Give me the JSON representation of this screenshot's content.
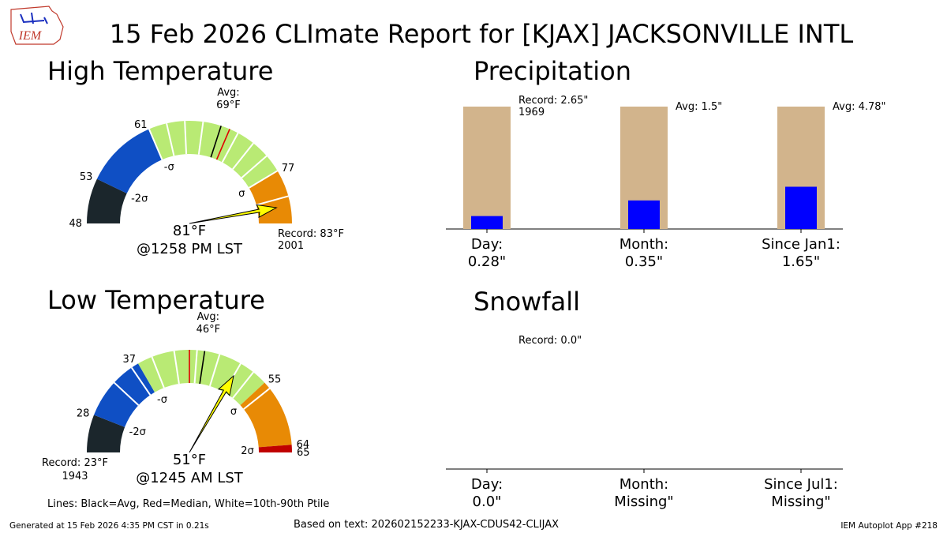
{
  "title": "15 Feb 2026 CLImate Report for [KJAX] JACKSONVILLE INTL",
  "logo_text": "IEM",
  "legend_note": "Lines: Black=Avg, Red=Median, White=10th-90th Ptile",
  "generated": "Generated at 15 Feb 2026 4:35 PM CST in 0.21s",
  "source": "Based on text: 202602152233-KJAX-CDUS42-CLIJAX",
  "app": "IEM Autoplot App #218",
  "chart_data": [
    {
      "type": "gauge",
      "title": "High Temperature",
      "range": [
        48,
        83
      ],
      "bands": [
        {
          "from": 48,
          "to": 53,
          "color": "#1b262c"
        },
        {
          "from": 53,
          "to": 61,
          "color": "#0f4fc4"
        },
        {
          "from": 61,
          "to": 77,
          "color": "#b9ea74"
        },
        {
          "from": 77,
          "to": 83,
          "color": "#e88a05"
        }
      ],
      "ticks": [
        48,
        53,
        61,
        77
      ],
      "sigma_labels": [
        {
          "value": 53,
          "label": "-2σ"
        },
        {
          "value": 61,
          "label": "-σ"
        },
        {
          "value": 77,
          "label": "σ"
        }
      ],
      "avg": 69,
      "avg_label": "Avg:",
      "avg_value_label": "69°F",
      "median": 70,
      "percentile_lines": [
        61,
        63,
        65,
        67,
        71,
        73,
        75,
        77,
        80
      ],
      "value": 81,
      "value_label": "81°F",
      "time": "@1258 PM LST",
      "record": 83,
      "record_label": "Record: 83°F",
      "record_year": "2001",
      "needle_color": "#ffff00"
    },
    {
      "type": "bar",
      "title": "Precipitation",
      "categories": [
        "Day:",
        "Month:",
        "Since Jan1:"
      ],
      "values": [
        0.28,
        0.35,
        1.65
      ],
      "value_labels": [
        "0.28\"",
        "0.35\"",
        "1.65\""
      ],
      "reference_values": [
        2.65,
        1.5,
        4.78
      ],
      "reference_labels": [
        "Record: 2.65\"",
        "Avg: 1.5\"",
        "Avg: 4.78\""
      ],
      "reference_years": [
        "1969",
        null,
        null
      ],
      "color": "#0000ff",
      "reference_color": "#d2b48c"
    },
    {
      "type": "gauge",
      "title": "Low Temperature",
      "range": [
        23,
        65
      ],
      "bands": [
        {
          "from": 23,
          "to": 28,
          "color": "#1b262c"
        },
        {
          "from": 28,
          "to": 37,
          "color": "#0f4fc4"
        },
        {
          "from": 37,
          "to": 55,
          "color": "#b9ea74"
        },
        {
          "from": 55,
          "to": 64,
          "color": "#e88a05"
        },
        {
          "from": 64,
          "to": 65,
          "color": "#c00000"
        }
      ],
      "ticks": [
        28,
        37,
        55,
        64,
        65
      ],
      "sigma_labels": [
        {
          "value": 28,
          "label": "-2σ"
        },
        {
          "value": 37,
          "label": "-σ"
        },
        {
          "value": 55,
          "label": "σ"
        },
        {
          "value": 64,
          "label": "2σ"
        }
      ],
      "avg": 46,
      "avg_label": "Avg:",
      "avg_value_label": "46°F",
      "median": 44,
      "percentile_lines": [
        33,
        36,
        39,
        42,
        45,
        48,
        51,
        53,
        56
      ],
      "value": 51,
      "value_label": "51°F",
      "time": "@1245 AM LST",
      "record": 23,
      "record_label": "Record: 23°F",
      "record_year": "1943",
      "needle_color": "#ffff00"
    },
    {
      "type": "bar",
      "title": "Snowfall",
      "categories": [
        "Day:",
        "Month:",
        "Since Jul1:"
      ],
      "values": [
        0.0,
        null,
        null
      ],
      "value_labels": [
        "0.0\"",
        "Missing\"",
        "Missing\""
      ],
      "reference_values": [
        0.0,
        null,
        null
      ],
      "reference_labels": [
        "Record: 0.0\"",
        null,
        null
      ],
      "reference_years": [
        null,
        null,
        null
      ],
      "color": "#0000ff",
      "reference_color": "#d2b48c"
    }
  ]
}
